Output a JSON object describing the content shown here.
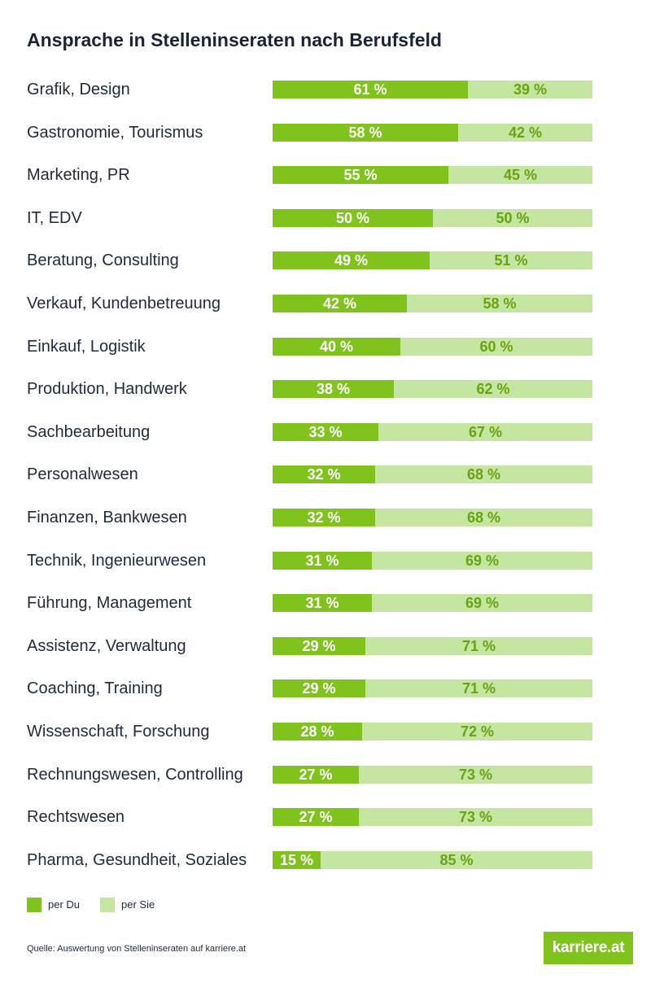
{
  "chart_data": {
    "type": "bar",
    "orientation": "horizontal",
    "stacked": true,
    "percent_stacked": true,
    "title": "Ansprache in Stelleninseraten nach Berufsfeld",
    "categories": [
      "Grafik, Design",
      "Gastronomie, Tourismus",
      "Marketing, PR",
      "IT, EDV",
      "Beratung, Consulting",
      "Verkauf, Kundenbetreuung",
      "Einkauf, Logistik",
      "Produktion, Handwerk",
      "Sachbearbeitung",
      "Personalwesen",
      "Finanzen, Bankwesen",
      "Technik, Ingenieurwesen",
      "Führung, Management",
      "Assistenz, Verwaltung",
      "Coaching, Training",
      "Wissenschaft, Forschung",
      "Rechnungswesen, Controlling",
      "Rechtswesen",
      "Pharma, Gesundheit, Soziales"
    ],
    "series": [
      {
        "name": "per Du",
        "color": "#7fc31c",
        "values": [
          61,
          58,
          55,
          50,
          49,
          42,
          40,
          38,
          33,
          32,
          32,
          31,
          31,
          29,
          29,
          28,
          27,
          27,
          15
        ]
      },
      {
        "name": "per Sie",
        "color": "#c5e6a0",
        "values": [
          39,
          42,
          45,
          50,
          51,
          58,
          60,
          62,
          67,
          68,
          68,
          69,
          69,
          71,
          71,
          72,
          73,
          73,
          85
        ]
      }
    ],
    "value_suffix": " %",
    "xlim": [
      0,
      100
    ],
    "legend_position": "bottom-left"
  },
  "footer": {
    "source": "Quelle: Auswertung von Stelleninseraten auf karriere.at",
    "logo_text": "karriere.at"
  },
  "colors": {
    "du": "#7fc31c",
    "sie": "#c5e6a0",
    "sie_text": "#6aa215",
    "title": "#1a2436"
  }
}
